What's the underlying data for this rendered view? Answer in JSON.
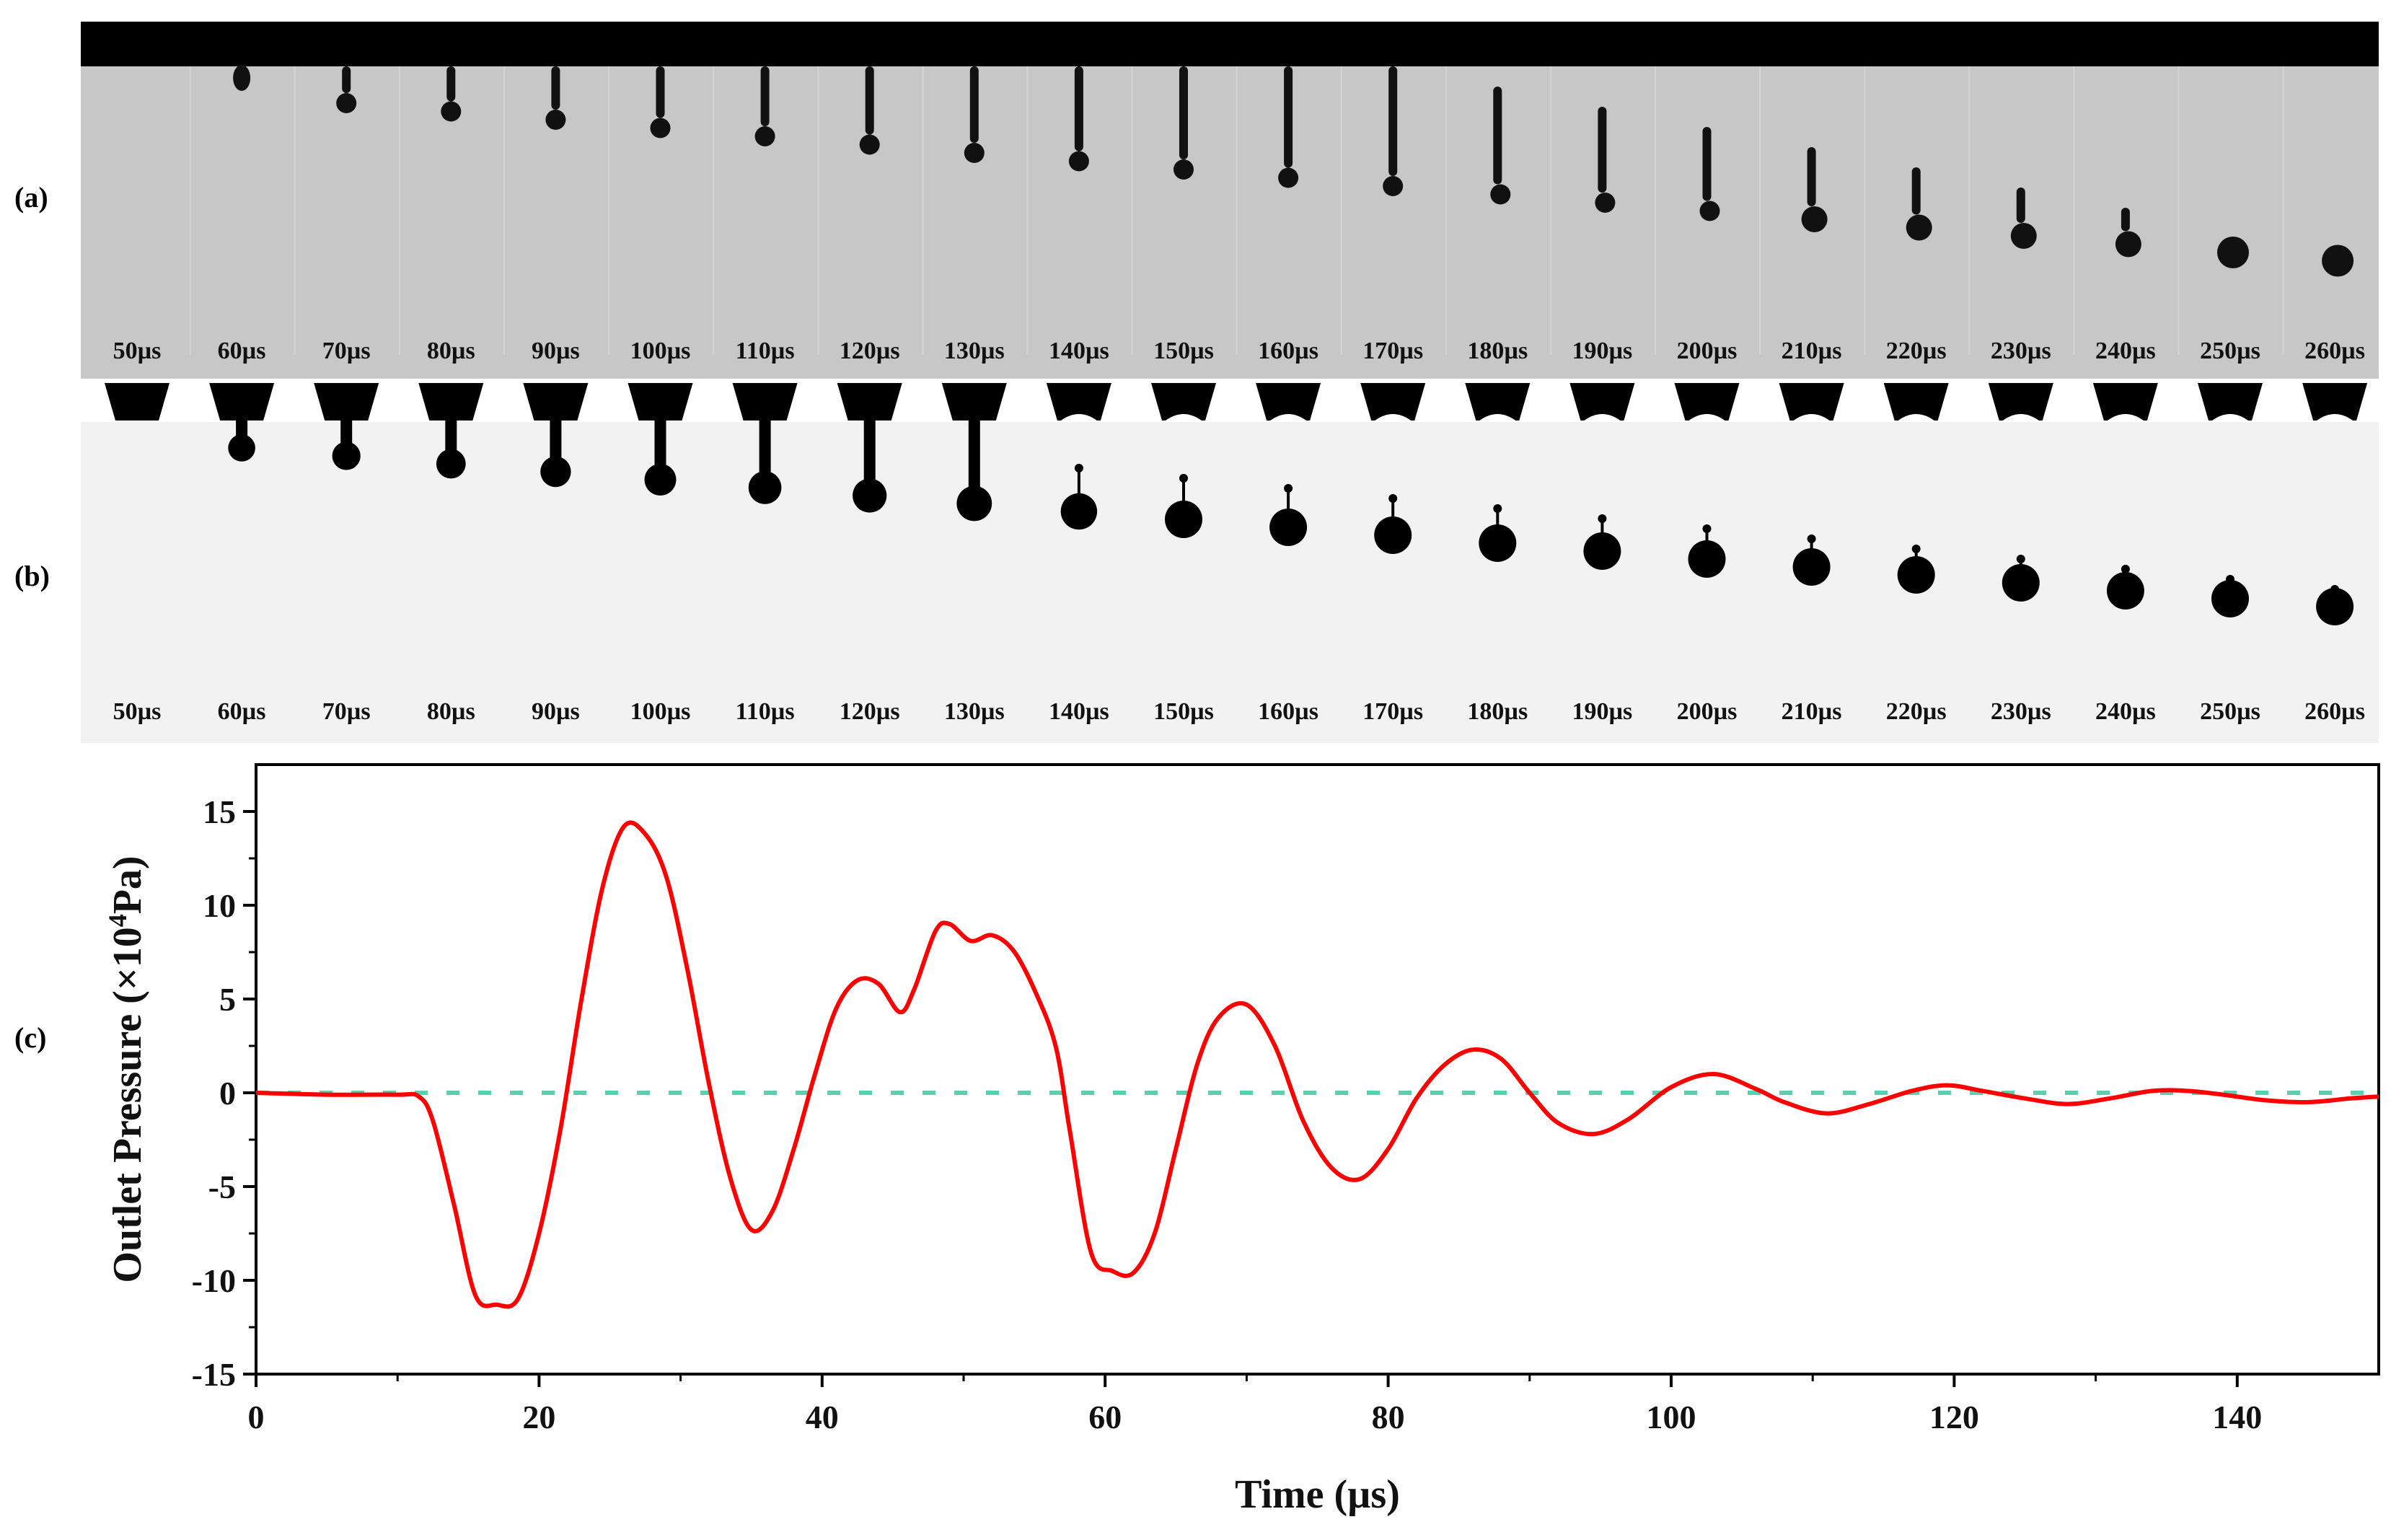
{
  "panels": {
    "a": {
      "label": "(a)"
    },
    "b": {
      "label": "(b)"
    },
    "c": {
      "label": "(c)"
    }
  },
  "time_labels": [
    "50µs",
    "60µs",
    "70µs",
    "80µs",
    "90µs",
    "100µs",
    "110µs",
    "120µs",
    "130µs",
    "140µs",
    "150µs",
    "160µs",
    "170µs",
    "180µs",
    "190µs",
    "200µs",
    "210µs",
    "220µs",
    "230µs",
    "240µs",
    "250µs",
    "260µs"
  ],
  "colors": {
    "curve": "#ff0000",
    "zero_line": "#5ccfb0",
    "strip_a_bg": "#c7c7c7",
    "strip_b_bg": "#f2f2f2"
  },
  "chart_data": {
    "type": "line",
    "xlabel": "Time (µs)",
    "ylabel_main": "Outlet Pressure (×10",
    "ylabel_sup": "4",
    "ylabel_end": "Pa)",
    "xlim": [
      0,
      150
    ],
    "ylim": [
      -15,
      17.5
    ],
    "x_ticks": [
      0,
      20,
      40,
      60,
      80,
      100,
      120,
      140
    ],
    "y_ticks": [
      15,
      10,
      5,
      0,
      -5,
      -10,
      -15
    ],
    "reference_line": {
      "y": 0,
      "style": "dashed"
    },
    "series": [
      {
        "x": [
          0,
          5,
          10,
          11.5,
          12.5,
          14,
          15.5,
          17,
          18.5,
          20,
          21.5,
          23,
          24.5,
          26,
          27.5,
          29,
          30.5,
          32,
          33.5,
          35,
          36.5,
          38,
          39.5,
          41,
          42.5,
          44,
          45.5,
          46.5,
          48,
          49,
          50.5,
          52,
          53.5,
          55,
          56.5,
          57.5,
          59,
          60.5,
          62,
          63.5,
          65,
          66.5,
          68,
          70,
          72,
          74,
          76,
          78,
          80,
          82,
          84,
          86,
          88,
          90,
          92,
          94.5,
          97,
          100,
          103,
          106,
          108,
          111,
          114,
          117,
          119.5,
          122,
          125,
          128,
          131,
          134,
          136.5,
          139,
          142,
          145,
          148,
          150
        ],
        "y": [
          0,
          -0.1,
          -0.1,
          -0.2,
          -1.5,
          -6.0,
          -10.8,
          -11.3,
          -11.0,
          -7.5,
          -2.0,
          5.0,
          11.0,
          14.2,
          13.8,
          11.5,
          6.5,
          0.5,
          -4.5,
          -7.3,
          -6.3,
          -3.0,
          1.0,
          4.5,
          6.0,
          5.8,
          4.3,
          5.5,
          8.6,
          9.0,
          8.1,
          8.4,
          7.6,
          5.5,
          2.5,
          -2.0,
          -8.5,
          -9.5,
          -9.6,
          -7.5,
          -3.0,
          1.5,
          4.0,
          4.7,
          2.5,
          -1.5,
          -4.0,
          -4.6,
          -3.0,
          -0.3,
          1.5,
          2.3,
          1.8,
          0.0,
          -1.6,
          -2.2,
          -1.4,
          0.3,
          1.0,
          0.2,
          -0.5,
          -1.1,
          -0.6,
          0.1,
          0.4,
          0.1,
          -0.3,
          -0.6,
          -0.3,
          0.1,
          0.1,
          -0.1,
          -0.4,
          -0.5,
          -0.3,
          -0.2
        ]
      }
    ]
  }
}
